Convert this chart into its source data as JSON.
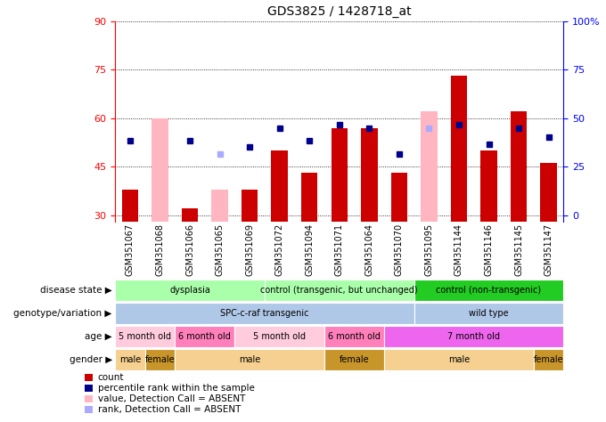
{
  "title": "GDS3825 / 1428718_at",
  "samples": [
    "GSM351067",
    "GSM351068",
    "GSM351066",
    "GSM351065",
    "GSM351069",
    "GSM351072",
    "GSM351094",
    "GSM351071",
    "GSM351064",
    "GSM351070",
    "GSM351095",
    "GSM351144",
    "GSM351146",
    "GSM351145",
    "GSM351147"
  ],
  "bar_values": [
    38,
    0,
    32,
    0,
    38,
    50,
    43,
    57,
    57,
    43,
    0,
    73,
    50,
    62,
    46
  ],
  "bar_absent": [
    0,
    60,
    0,
    38,
    0,
    0,
    0,
    0,
    0,
    0,
    62,
    0,
    0,
    0,
    0
  ],
  "blue_squares": [
    53,
    0,
    53,
    0,
    51,
    57,
    53,
    58,
    57,
    49,
    0,
    58,
    52,
    57,
    54
  ],
  "blue_absent": [
    0,
    0,
    0,
    49,
    0,
    0,
    0,
    0,
    0,
    0,
    57,
    0,
    0,
    0,
    0
  ],
  "ylim_min": 28,
  "ylim_max": 90,
  "yticks": [
    30,
    45,
    60,
    75,
    90
  ],
  "right_ylabels": [
    "0",
    "25",
    "50",
    "75",
    "100%"
  ],
  "right_ytick_positions": [
    30,
    45,
    60,
    75,
    90
  ],
  "bar_color": "#cc0000",
  "absent_bar_color": "#ffb6c1",
  "blue_color": "#00008b",
  "absent_blue_color": "#aaaaff",
  "plot_bg": "#ffffff",
  "fig_bg": "#ffffff",
  "sample_area_bg": "#d4d4d4",
  "disease_state_groups": [
    {
      "label": "dysplasia",
      "start": 0,
      "end": 5,
      "color": "#aaffaa"
    },
    {
      "label": "control (transgenic, but unchanged)",
      "start": 5,
      "end": 10,
      "color": "#aaffaa"
    },
    {
      "label": "control (non-transgenic)",
      "start": 10,
      "end": 15,
      "color": "#22cc22"
    }
  ],
  "genotype_groups": [
    {
      "label": "SPC-c-raf transgenic",
      "start": 0,
      "end": 10,
      "color": "#b0c8e8"
    },
    {
      "label": "wild type",
      "start": 10,
      "end": 15,
      "color": "#b0c8e8"
    }
  ],
  "age_groups": [
    {
      "label": "5 month old",
      "start": 0,
      "end": 2,
      "color": "#ffccdd"
    },
    {
      "label": "6 month old",
      "start": 2,
      "end": 4,
      "color": "#ff80bb"
    },
    {
      "label": "5 month old",
      "start": 4,
      "end": 7,
      "color": "#ffccdd"
    },
    {
      "label": "6 month old",
      "start": 7,
      "end": 9,
      "color": "#ff80bb"
    },
    {
      "label": "7 month old",
      "start": 9,
      "end": 15,
      "color": "#ee66ee"
    }
  ],
  "gender_groups": [
    {
      "label": "male",
      "start": 0,
      "end": 1,
      "color": "#f5d090"
    },
    {
      "label": "female",
      "start": 1,
      "end": 2,
      "color": "#c8952a"
    },
    {
      "label": "male",
      "start": 2,
      "end": 7,
      "color": "#f5d090"
    },
    {
      "label": "female",
      "start": 7,
      "end": 9,
      "color": "#c8952a"
    },
    {
      "label": "male",
      "start": 9,
      "end": 14,
      "color": "#f5d090"
    },
    {
      "label": "female",
      "start": 14,
      "end": 15,
      "color": "#c8952a"
    }
  ],
  "row_labels": [
    "disease state",
    "genotype/variation",
    "age",
    "gender"
  ],
  "legend_items": [
    {
      "color": "#cc0000",
      "label": "count"
    },
    {
      "color": "#00008b",
      "label": "percentile rank within the sample"
    },
    {
      "color": "#ffb6c1",
      "label": "value, Detection Call = ABSENT"
    },
    {
      "color": "#aaaaff",
      "label": "rank, Detection Call = ABSENT"
    }
  ]
}
